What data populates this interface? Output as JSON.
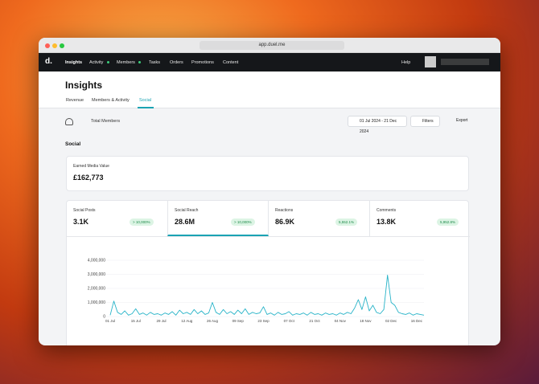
{
  "browser": {
    "url": "app.duel.me"
  },
  "nav": {
    "logo": "d.",
    "items": [
      "Insights",
      "Activity",
      "Members",
      "Tasks",
      "Orders",
      "Promotions",
      "Content"
    ],
    "help": "Help"
  },
  "page": {
    "title": "Insights",
    "tabs": [
      "Revenue",
      "Members & Activity",
      "Social"
    ]
  },
  "toolbar": {
    "segment": "Total Members",
    "date_range": "01 Jul 2024 - 21 Dec 2024",
    "filters": "Filters",
    "export": "Export"
  },
  "section": {
    "title": "Social"
  },
  "earned_media": {
    "label": "Earned Media Value",
    "value": "£162,773"
  },
  "metrics": [
    {
      "label": "Social Posts",
      "value": "3.1K",
      "change": "> 10,000%"
    },
    {
      "label": "Social Reach",
      "value": "28.6M",
      "change": "> 10,000%"
    },
    {
      "label": "Reactions",
      "value": "86.9K",
      "change": "5,552.1%"
    },
    {
      "label": "Comments",
      "value": "13.8K",
      "change": "5,952.8%"
    }
  ],
  "social_reach_chart": {
    "type": "line",
    "color": "#27b3c8",
    "categories": [
      "01 Jul",
      null,
      null,
      null,
      null,
      null,
      null,
      "15 Jul",
      null,
      null,
      null,
      null,
      null,
      null,
      "29 Jul",
      null,
      null,
      null,
      null,
      null,
      null,
      "12 Aug",
      null,
      null,
      null,
      null,
      null,
      null,
      "26 Aug",
      null,
      null,
      null,
      null,
      null,
      null,
      "09 Sep",
      null,
      null,
      null,
      null,
      null,
      null,
      "23 Sep",
      null,
      null,
      null,
      null,
      null,
      null,
      "07 Oct",
      null,
      null,
      null,
      null,
      null,
      null,
      "21 Oct",
      null,
      null,
      null,
      null,
      null,
      null,
      "04 Nov",
      null,
      null,
      null,
      null,
      null,
      null,
      "18 Nov",
      null,
      null,
      null,
      null,
      null,
      null,
      "02 Dec",
      null,
      null,
      null,
      null,
      null,
      null,
      "16 Dec",
      null,
      null
    ],
    "values": [
      100000,
      1100000,
      300000,
      150000,
      400000,
      100000,
      200000,
      550000,
      150000,
      250000,
      100000,
      300000,
      150000,
      200000,
      100000,
      250000,
      150000,
      350000,
      100000,
      450000,
      200000,
      300000,
      150000,
      500000,
      200000,
      400000,
      150000,
      250000,
      1000000,
      300000,
      150000,
      500000,
      200000,
      350000,
      150000,
      450000,
      200000,
      550000,
      150000,
      300000,
      200000,
      250000,
      700000,
      150000,
      250000,
      100000,
      300000,
      150000,
      200000,
      350000,
      100000,
      200000,
      150000,
      250000,
      100000,
      300000,
      150000,
      200000,
      100000,
      250000,
      150000,
      200000,
      100000,
      250000,
      150000,
      300000,
      200000,
      600000,
      1200000,
      500000,
      1400000,
      400000,
      800000,
      300000,
      200000,
      500000,
      2950000,
      1000000,
      800000,
      300000,
      200000,
      150000,
      250000,
      100000,
      200000,
      150000,
      100000
    ],
    "ylim": [
      0,
      4000000
    ],
    "yticks": [
      0,
      {
        "value": 1000000,
        "label": "1,000,000"
      },
      {
        "value": 2000000,
        "label": "2,000,000"
      },
      {
        "value": 3000000,
        "label": "3,000,000"
      },
      {
        "value": 4000000,
        "label": "4,000,000"
      }
    ],
    "grid": true
  }
}
